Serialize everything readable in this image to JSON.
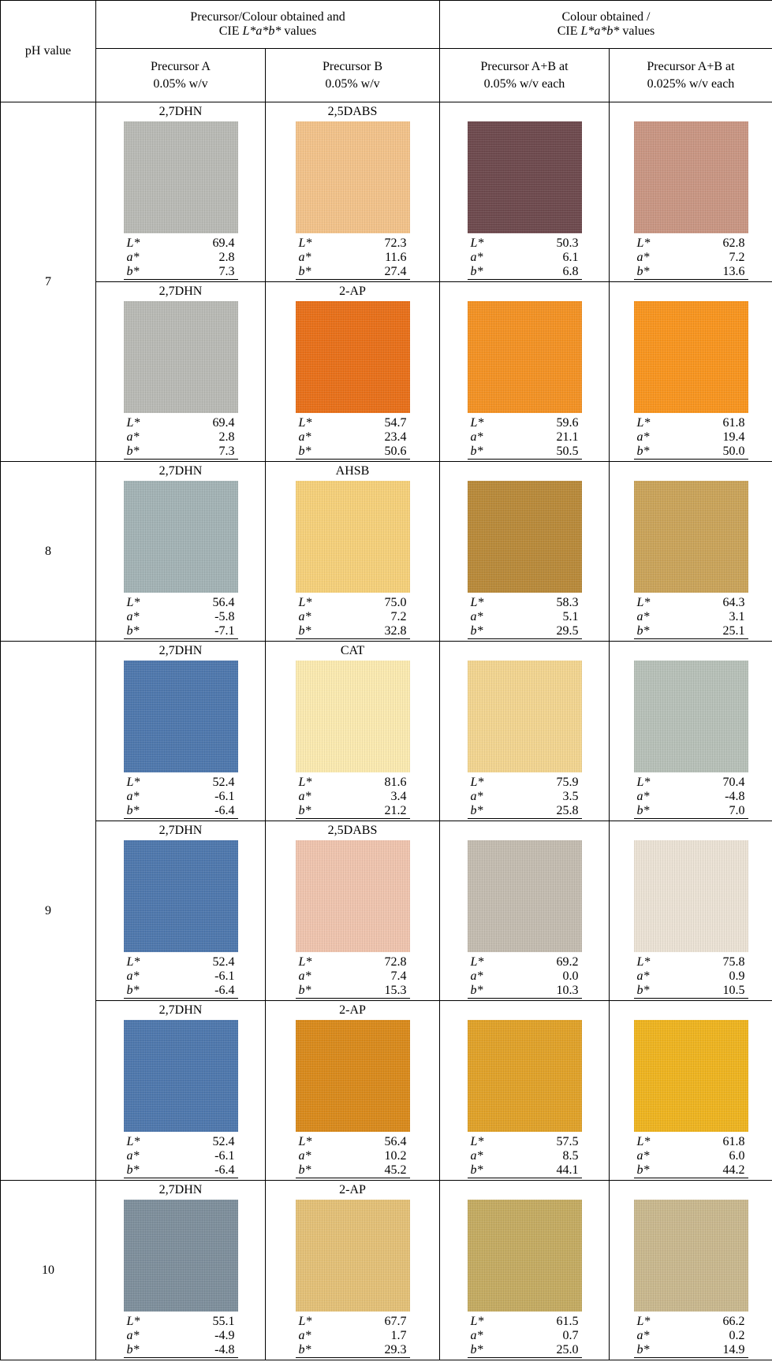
{
  "header": {
    "ph": "pH value",
    "groups": [
      {
        "line": "Precursor/Colour obtained and",
        "cie": {
          "pre": "CIE ",
          "em": "L*a*b*",
          "post": " values"
        }
      },
      {
        "line": "Colour obtained /",
        "cie": {
          "pre": "CIE ",
          "em": "L*a*b*",
          "post": " values"
        }
      }
    ],
    "subheaders": [
      [
        "Precursor A",
        "0.05% w/v"
      ],
      [
        "Precursor B",
        "0.05% w/v"
      ],
      [
        "Precursor A+B at",
        "0.05% w/v each"
      ],
      [
        "Precursor A+B at",
        "0.025% w/v each"
      ]
    ]
  },
  "labels": [
    "L*",
    "a*",
    "b*"
  ],
  "groups": [
    {
      "ph": "7",
      "rows": [
        [
          {
            "name": "2,7DHN",
            "color": "#b9bab5",
            "values": [
              "69.4",
              "2.8",
              "7.3"
            ]
          },
          {
            "name": "2,5DABS",
            "color": "#f2c28a",
            "values": [
              "72.3",
              "11.6",
              "27.4"
            ]
          },
          {
            "color": "#6e4a4e",
            "values": [
              "50.3",
              "6.1",
              "6.8"
            ]
          },
          {
            "color": "#c99683",
            "values": [
              "62.8",
              "7.2",
              "13.6"
            ]
          }
        ],
        [
          {
            "name": "2,7DHN",
            "color": "#b9bab5",
            "values": [
              "69.4",
              "2.8",
              "7.3"
            ]
          },
          {
            "name": "2-AP",
            "color": "#e8701a",
            "values": [
              "54.7",
              "23.4",
              "50.6"
            ]
          },
          {
            "color": "#f39224",
            "values": [
              "59.6",
              "21.1",
              "50.5"
            ]
          },
          {
            "color": "#f8951f",
            "values": [
              "61.8",
              "19.4",
              "50.0"
            ]
          }
        ]
      ]
    },
    {
      "ph": "8",
      "rows": [
        [
          {
            "name": "2,7DHN",
            "color": "#a3b3b5",
            "values": [
              "56.4",
              "-5.8",
              "-7.1"
            ]
          },
          {
            "name": "AHSB",
            "color": "#f5d07a",
            "values": [
              "75.0",
              "7.2",
              "32.8"
            ]
          },
          {
            "color": "#b98a3a",
            "values": [
              "58.3",
              "5.1",
              "29.5"
            ]
          },
          {
            "color": "#caa45a",
            "values": [
              "64.3",
              "3.1",
              "25.1"
            ]
          }
        ]
      ]
    },
    {
      "ph": "9",
      "rows": [
        [
          {
            "name": "2,7DHN",
            "color": "#4f78ad",
            "values": [
              "52.4",
              "-6.1",
              "-6.4"
            ]
          },
          {
            "name": "CAT",
            "color": "#fbeab0",
            "values": [
              "81.6",
              "3.4",
              "21.2"
            ]
          },
          {
            "color": "#f2d590",
            "values": [
              "75.9",
              "3.5",
              "25.8"
            ]
          },
          {
            "color": "#b7c0b8",
            "values": [
              "70.4",
              "-4.8",
              "7.0"
            ]
          }
        ],
        [
          {
            "name": "2,7DHN",
            "color": "#4f78ad",
            "values": [
              "52.4",
              "-6.1",
              "-6.4"
            ]
          },
          {
            "name": "2,5DABS",
            "color": "#efc4ae",
            "values": [
              "72.8",
              "7.4",
              "15.3"
            ]
          },
          {
            "color": "#c3bcb0",
            "values": [
              "69.2",
              "0.0",
              "10.3"
            ]
          },
          {
            "color": "#ebe2d5",
            "values": [
              "75.8",
              "0.9",
              "10.5"
            ]
          }
        ],
        [
          {
            "name": "2,7DHN",
            "color": "#4f78ad",
            "values": [
              "52.4",
              "-6.1",
              "-6.4"
            ]
          },
          {
            "name": "2-AP",
            "color": "#d98a1c",
            "values": [
              "56.4",
              "10.2",
              "45.2"
            ]
          },
          {
            "color": "#e0a229",
            "values": [
              "57.5",
              "8.5",
              "44.1"
            ]
          },
          {
            "color": "#eeb420",
            "values": [
              "61.8",
              "6.0",
              "44.2"
            ]
          }
        ]
      ]
    },
    {
      "ph": "10",
      "rows": [
        [
          {
            "name": "2,7DHN",
            "color": "#7e8f9c",
            "values": [
              "55.1",
              "-4.9",
              "-4.8"
            ]
          },
          {
            "name": "2-AP",
            "color": "#e3c077",
            "values": [
              "67.7",
              "1.7",
              "29.3"
            ]
          },
          {
            "color": "#c4ab62",
            "values": [
              "61.5",
              "0.7",
              "25.0"
            ]
          },
          {
            "color": "#c9b88e",
            "values": [
              "66.2",
              "0.2",
              "14.9"
            ]
          }
        ]
      ]
    }
  ]
}
